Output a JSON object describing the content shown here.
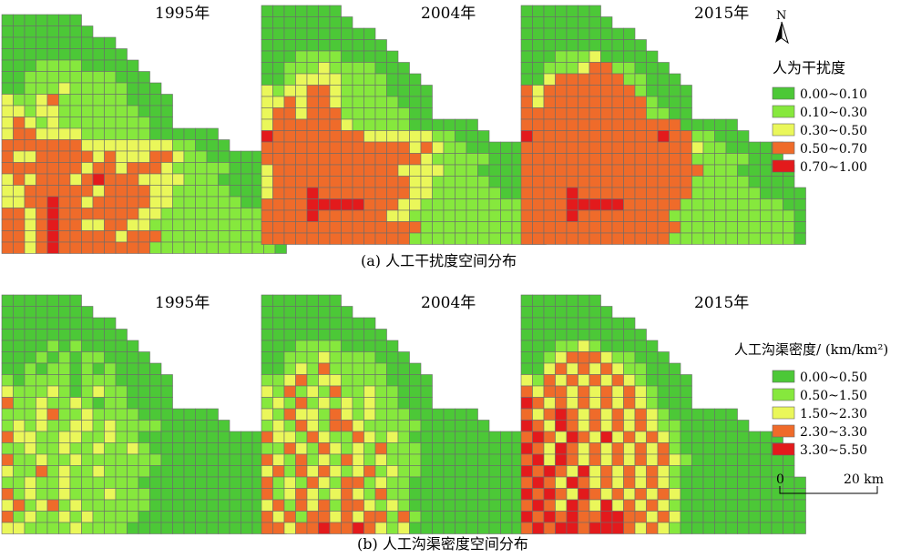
{
  "chart_data": [
    {
      "type": "heatmap",
      "caption": "(a) 人工干扰度空间分布",
      "legend_title": "人为干扰度",
      "classes": [
        {
          "label": "0.00~0.10",
          "color": "#4cc837"
        },
        {
          "label": "0.10~0.30",
          "color": "#86e83d"
        },
        {
          "label": "0.30~0.50",
          "color": "#eaf75a"
        },
        {
          "label": "0.50~0.70",
          "color": "#ef6b2a"
        },
        {
          "label": "0.70~1.00",
          "color": "#e31a1c"
        }
      ],
      "panels": [
        {
          "year": "1995年",
          "grid": [
            "0000000",
            "00000000",
            "0000000000",
            "00000000000",
            "000111100000",
            "0011111111000",
            "00111211111000",
            "211231111110000",
            "221221111111000",
            "232121111111100",
            "2332222111111000000",
            "33333332222222211000",
            "32233333232223321100000",
            "33333332332333211111000",
            "232333234333222211100000",
            "223333332333322111110000",
            "2233433233333221111110000",
            "3323433333332211111111100",
            "3323433223322111111111110",
            "3323433333233311111111110",
            "3323433333333111111111110"
          ]
        },
        {
          "year": "2004年",
          "grid": [
            "0000000",
            "00000000",
            "0000000000",
            "00000000000",
            "000111100000",
            "0011121111000",
            "00122221111000",
            "212233211110000",
            "223233211111000",
            "233233311111100",
            "2333333211111000000",
            "43333333322222211000",
            "33333333333332321100000",
            "33333333333333211111000",
            "233333333333222211100000",
            "233333333333322111110000",
            "2333433333333221111110000",
            "3333444443332211111111100",
            "3333433333322111111111110",
            "3333333333333311111111110",
            "3333333333333111111111110"
          ]
        },
        {
          "year": "2015年",
          "grid": [
            "0000000",
            "00000000",
            "0000000000",
            "00000000000",
            "000111200000",
            "0011123311000",
            "00233333311000",
            "323333333310000",
            "323333333331000",
            "333333333331100",
            "3333333333333300000",
            "43333333333343311000",
            "33333333333333321100000",
            "33333333333333311111000",
            "333333333333333311100000",
            "333333333333333111110000",
            "3333433333333331111110000",
            "3333444443333311111111100",
            "3333433333333111111111110",
            "3333333333333311111111110",
            "3333333333333111111111110"
          ]
        }
      ]
    },
    {
      "type": "heatmap",
      "caption": "(b) 人工沟渠密度空间分布",
      "legend_title": "人工沟渠密度/ (km/km²)",
      "classes": [
        {
          "label": "0.00~0.50",
          "color": "#4cc837"
        },
        {
          "label": "0.50~1.50",
          "color": "#86e83d"
        },
        {
          "label": "1.50~2.30",
          "color": "#eaf75a"
        },
        {
          "label": "2.30~3.30",
          "color": "#ef6b2a"
        },
        {
          "label": "3.30~5.50",
          "color": "#e31a1c"
        }
      ],
      "panels": [
        {
          "year": "1995年",
          "grid": [
            "0000000",
            "00000000",
            "0000000000",
            "00000000000",
            "000010100000",
            "0001010110000",
            "00101101010000",
            "101111011100000",
            "211121012110000",
            "311211210110000",
            "1112311211110000000",
            "12121122121111000000",
            "32211221121100000000000",
            "11211211211210000000000",
            "311211211111110000000000",
            "211312112111100000000000",
            "1121121111110000000000000",
            "3121121112111000000000000",
            "2312312111111000000000000",
            "3121121211110000000000000",
            "2211112111100000000000000"
          ]
        },
        {
          "year": "2004年",
          "grid": [
            "0000000",
            "00000000",
            "0000000000",
            "00000000000",
            "000111100000",
            "0011121111000",
            "00121311111000",
            "112312211110000",
            "213121311211000",
            "121312121211000",
            "2132213212111000000",
            "12132133211111000000",
            "32213211321210000000000",
            "11321321213111000000000",
            "321312132121110000000000",
            "231323212312110000000000",
            "3121321331211000000000000",
            "3123212321311000000000000",
            "2313231332121000000000000",
            "3231332323313100000000000",
            "3323343343212000000000000"
          ]
        },
        {
          "year": "2015年",
          "grid": [
            "0000000",
            "00000000",
            "0000000000",
            "00000000000",
            "000112100000",
            "0012333211000",
            "00232323211000",
            "213232323210000",
            "323323232321000",
            "432323232321000",
            "3234323232321000000",
            "43243232323211000000",
            "34324324232321000000000",
            "43243232323231000000000",
            "342432323232321000000000",
            "434324232323210000000000",
            "3432432323232100000000000",
            "4343243232323200000000000",
            "3432432423232100000000000",
            "4343433443323200000000000",
            "3434434443232100000000000"
          ]
        }
      ]
    }
  ],
  "north_label": "N",
  "scale_bar": {
    "start": "0",
    "end": "20 km"
  }
}
